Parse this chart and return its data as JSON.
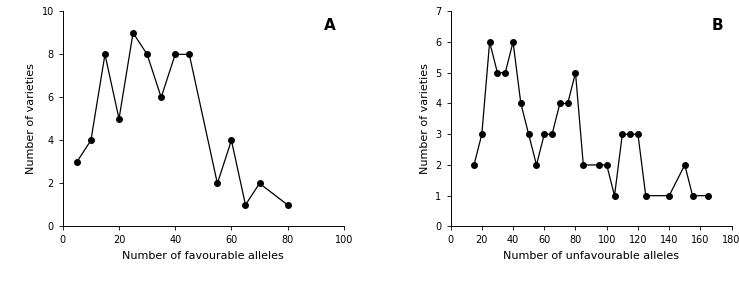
{
  "A": {
    "x": [
      5,
      10,
      15,
      20,
      25,
      30,
      35,
      40,
      45,
      55,
      60,
      65,
      70,
      80
    ],
    "y": [
      3,
      4,
      8,
      5,
      9,
      8,
      6,
      8,
      8,
      2,
      4,
      1,
      2,
      1
    ],
    "xlabel": "Number of favourable alleles",
    "ylabel": "Number of varieties",
    "xlim": [
      0,
      100
    ],
    "ylim": [
      0,
      10
    ],
    "xticks": [
      0,
      20,
      40,
      60,
      80,
      100
    ],
    "yticks": [
      0,
      2,
      4,
      6,
      8,
      10
    ],
    "label": "A"
  },
  "B": {
    "x": [
      15,
      20,
      25,
      30,
      35,
      40,
      45,
      50,
      55,
      60,
      65,
      70,
      75,
      80,
      85,
      95,
      100,
      105,
      110,
      115,
      120,
      125,
      140,
      150,
      155,
      165
    ],
    "y": [
      2,
      3,
      6,
      5,
      5,
      6,
      4,
      3,
      2,
      3,
      3,
      4,
      4,
      5,
      2,
      2,
      2,
      1,
      3,
      3,
      3,
      1,
      1,
      2,
      1,
      1
    ],
    "xlabel": "Number of unfavourable alleles",
    "ylabel": "Number of varieties",
    "xlim": [
      0,
      180
    ],
    "ylim": [
      0,
      7
    ],
    "xticks": [
      0,
      20,
      40,
      60,
      80,
      100,
      120,
      140,
      160,
      180
    ],
    "yticks": [
      0,
      1,
      2,
      3,
      4,
      5,
      6,
      7
    ],
    "label": "B"
  },
  "marker": "o",
  "marker_color": "black",
  "marker_size": 4,
  "line_color": "black",
  "line_width": 0.9,
  "background_color": "white",
  "tick_fontsize": 7,
  "label_fontsize": 8,
  "panel_label_fontsize": 11
}
